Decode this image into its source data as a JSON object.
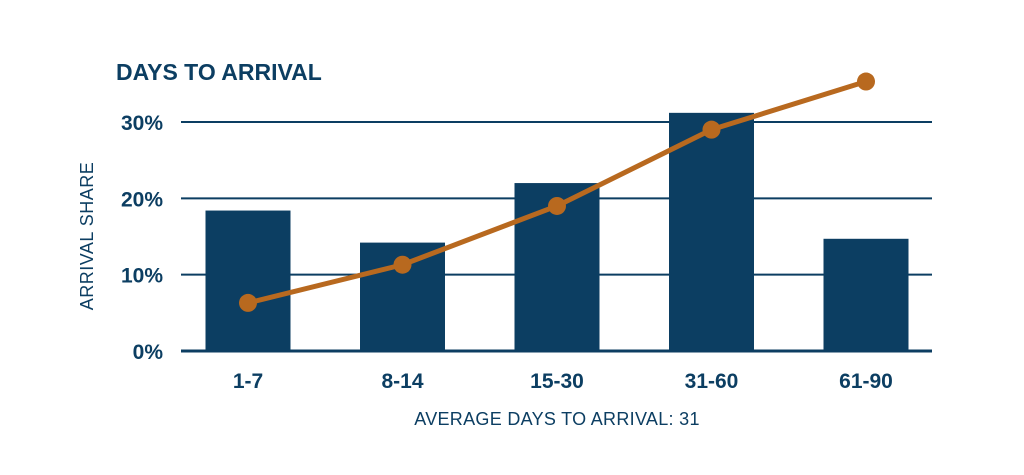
{
  "chart_data": {
    "type": "bar",
    "title": "DAYS TO ARRIVAL",
    "xlabel": "AVERAGE DAYS TO ARRIVAL: 31",
    "ylabel": "ARRIVAL SHARE",
    "categories": [
      "1-7",
      "8-14",
      "15-30",
      "31-60",
      "61-90"
    ],
    "ylim": [
      0,
      30
    ],
    "yticks": [
      0,
      10,
      20,
      30
    ],
    "ytick_labels": [
      "0%",
      "10%",
      "20%",
      "30%"
    ],
    "grid": true,
    "series": [
      {
        "type": "bar",
        "values": [
          18.4,
          14.2,
          22.0,
          31.2,
          14.7
        ]
      },
      {
        "type": "line",
        "values": [
          6.3,
          11.3,
          19.0,
          29.0,
          35.3
        ]
      }
    ],
    "colors": {
      "bar": "#0c3e62",
      "line": "#b8691f",
      "text": "#0c3e62",
      "grid": "#0c3e62"
    }
  }
}
